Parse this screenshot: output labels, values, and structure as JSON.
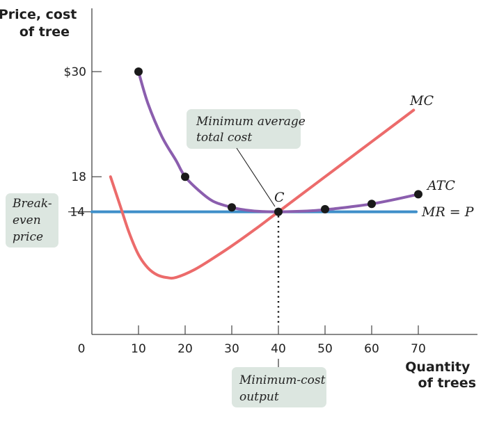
{
  "colors": {
    "atc": "#8b5eae",
    "mc": "#ec6b6b",
    "mr": "#3f8fc9",
    "callout_bg": "#dce6e0",
    "axis": "#444444",
    "dot": "#1a1a1a"
  },
  "chart_data": {
    "type": "line",
    "xlabel": "Quantity\nof trees",
    "ylabel": "Price, cost\nof tree",
    "xlim": [
      0,
      72
    ],
    "ylim": [
      0,
      30
    ],
    "x_ticks": [
      {
        "value": 0,
        "label": "0"
      },
      {
        "value": 10,
        "label": "10"
      },
      {
        "value": 20,
        "label": "20"
      },
      {
        "value": 30,
        "label": "30"
      },
      {
        "value": 40,
        "label": "40"
      },
      {
        "value": 50,
        "label": "50"
      },
      {
        "value": 60,
        "label": "60"
      },
      {
        "value": 70,
        "label": "70"
      }
    ],
    "y_ticks": [
      {
        "value": 30,
        "label": "$30"
      },
      {
        "value": 18,
        "label": "18"
      },
      {
        "value": 14,
        "label": "14"
      }
    ],
    "series": [
      {
        "name": "ATC",
        "x": [
          10,
          12,
          15,
          18,
          20,
          23,
          26,
          30,
          33,
          36,
          40,
          44,
          48,
          52,
          56,
          60,
          64,
          70
        ],
        "y": [
          30,
          26.4,
          22.6,
          19.9,
          18.0,
          16.4,
          15.2,
          14.5,
          14.2,
          14.05,
          14.0,
          14.05,
          14.15,
          14.35,
          14.6,
          14.9,
          15.3,
          16.0
        ]
      },
      {
        "name": "MC",
        "x": [
          4,
          6,
          8,
          10,
          12,
          14,
          16,
          18,
          22,
          26,
          30,
          35,
          40,
          45,
          50,
          55,
          60,
          65,
          69
        ],
        "y": [
          18.0,
          14.8,
          11.6,
          9.1,
          7.6,
          6.8,
          6.5,
          6.5,
          7.4,
          8.7,
          10.1,
          12.0,
          14.0,
          16.0,
          18.0,
          20.0,
          22.0,
          24.0,
          25.6
        ]
      },
      {
        "name": "MR = P",
        "x": [
          0,
          70
        ],
        "y": [
          14,
          14
        ]
      }
    ],
    "points": [
      {
        "x": 10,
        "y": 30
      },
      {
        "x": 20,
        "y": 18
      },
      {
        "x": 30,
        "y": 14.5
      },
      {
        "x": 40,
        "y": 14
      },
      {
        "x": 50,
        "y": 14.3
      },
      {
        "x": 60,
        "y": 14.9
      },
      {
        "x": 70,
        "y": 16
      }
    ],
    "annotations": {
      "point_c": "C",
      "mc_label": "MC",
      "atc_label": "ATC",
      "mr_label": "MR = P",
      "min_atc_callout": "Minimum average\ntotal cost",
      "breakeven_callout": "Break-\neven\nprice",
      "min_cost_output_callout": "Minimum-cost\noutput"
    }
  }
}
